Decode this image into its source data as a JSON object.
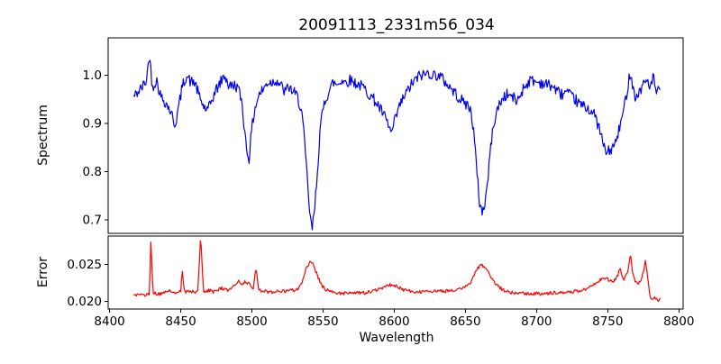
{
  "chart_data": {
    "type": "line",
    "title": "20091113_2331m56_034",
    "x": {
      "label": "Wavelength",
      "xlim": [
        8399,
        8803
      ],
      "ticks": [
        8400,
        8450,
        8500,
        8550,
        8600,
        8650,
        8700,
        8750,
        8800
      ],
      "tick_labels": [
        "8400",
        "8450",
        "8500",
        "8550",
        "8600",
        "8650",
        "8700",
        "8750",
        "8800"
      ],
      "data_range": [
        8417,
        8787
      ],
      "sample_step": 0.6,
      "grid": false
    },
    "panels": [
      {
        "name": "spectrum",
        "ylabel": "Spectrum",
        "color": "#0000ee",
        "ylim": [
          0.672,
          1.077
        ],
        "yticks": [
          0.7,
          0.8,
          0.9,
          1.0
        ],
        "ytick_labels": [
          "0.7",
          "0.8",
          "0.9",
          "1.0"
        ],
        "noise_amplitude": 0.012,
        "features_note": "absorption lines near 8446, 8498, 8542 (deepest ~0.68), 8598, 8662 (~0.715), broad 8750 (~0.84)",
        "anchors": [
          [
            8417,
            0.955
          ],
          [
            8420,
            0.965
          ],
          [
            8423,
            0.975
          ],
          [
            8426,
            0.99
          ],
          [
            8428,
            1.045
          ],
          [
            8430,
            0.975
          ],
          [
            8433,
            0.99
          ],
          [
            8436,
            0.955
          ],
          [
            8439,
            0.945
          ],
          [
            8442,
            0.93
          ],
          [
            8444,
            0.915
          ],
          [
            8446,
            0.895
          ],
          [
            8448,
            0.925
          ],
          [
            8451,
            0.975
          ],
          [
            8454,
            1.0
          ],
          [
            8457,
            0.985
          ],
          [
            8460,
            0.985
          ],
          [
            8463,
            0.955
          ],
          [
            8466,
            0.935
          ],
          [
            8469,
            0.925
          ],
          [
            8472,
            0.95
          ],
          [
            8475,
            0.97
          ],
          [
            8478,
            0.985
          ],
          [
            8481,
            1.0
          ],
          [
            8484,
            0.975
          ],
          [
            8487,
            0.98
          ],
          [
            8490,
            0.975
          ],
          [
            8493,
            0.945
          ],
          [
            8495,
            0.88
          ],
          [
            8497,
            0.835
          ],
          [
            8498,
            0.828
          ],
          [
            8500,
            0.89
          ],
          [
            8502,
            0.93
          ],
          [
            8505,
            0.96
          ],
          [
            8508,
            0.97
          ],
          [
            8511,
            0.985
          ],
          [
            8514,
            0.985
          ],
          [
            8517,
            0.99
          ],
          [
            8520,
            0.98
          ],
          [
            8523,
            0.965
          ],
          [
            8526,
            0.975
          ],
          [
            8529,
            0.965
          ],
          [
            8532,
            0.955
          ],
          [
            8535,
            0.925
          ],
          [
            8537,
            0.86
          ],
          [
            8539,
            0.78
          ],
          [
            8541,
            0.7
          ],
          [
            8542.5,
            0.682
          ],
          [
            8544,
            0.72
          ],
          [
            8546,
            0.8
          ],
          [
            8548,
            0.89
          ],
          [
            8551,
            0.945
          ],
          [
            8554,
            0.965
          ],
          [
            8557,
            0.985
          ],
          [
            8560,
            0.98
          ],
          [
            8563,
            0.99
          ],
          [
            8566,
            0.985
          ],
          [
            8569,
            0.99
          ],
          [
            8572,
            0.985
          ],
          [
            8575,
            0.98
          ],
          [
            8578,
            0.975
          ],
          [
            8581,
            0.965
          ],
          [
            8584,
            0.955
          ],
          [
            8587,
            0.945
          ],
          [
            8590,
            0.93
          ],
          [
            8593,
            0.915
          ],
          [
            8596,
            0.895
          ],
          [
            8598,
            0.878
          ],
          [
            8600,
            0.9
          ],
          [
            8603,
            0.93
          ],
          [
            8606,
            0.95
          ],
          [
            8609,
            0.965
          ],
          [
            8612,
            0.98
          ],
          [
            8615,
            0.99
          ],
          [
            8618,
            1.0
          ],
          [
            8621,
            1.0
          ],
          [
            8624,
            1.005
          ],
          [
            8627,
            1.0
          ],
          [
            8630,
            1.0
          ],
          [
            8633,
            0.995
          ],
          [
            8636,
            0.985
          ],
          [
            8639,
            0.975
          ],
          [
            8642,
            0.965
          ],
          [
            8645,
            0.955
          ],
          [
            8648,
            0.945
          ],
          [
            8651,
            0.94
          ],
          [
            8654,
            0.925
          ],
          [
            8656,
            0.88
          ],
          [
            8658,
            0.8
          ],
          [
            8660,
            0.735
          ],
          [
            8662,
            0.715
          ],
          [
            8664,
            0.74
          ],
          [
            8666,
            0.79
          ],
          [
            8668,
            0.86
          ],
          [
            8671,
            0.915
          ],
          [
            8674,
            0.94
          ],
          [
            8677,
            0.955
          ],
          [
            8680,
            0.96
          ],
          [
            8683,
            0.955
          ],
          [
            8686,
            0.945
          ],
          [
            8688,
            0.955
          ],
          [
            8691,
            0.975
          ],
          [
            8694,
            0.985
          ],
          [
            8697,
            0.99
          ],
          [
            8700,
            0.985
          ],
          [
            8703,
            0.985
          ],
          [
            8706,
            0.98
          ],
          [
            8709,
            0.98
          ],
          [
            8712,
            0.975
          ],
          [
            8715,
            0.965
          ],
          [
            8718,
            0.96
          ],
          [
            8721,
            0.965
          ],
          [
            8724,
            0.955
          ],
          [
            8727,
            0.95
          ],
          [
            8730,
            0.94
          ],
          [
            8733,
            0.935
          ],
          [
            8737,
            0.93
          ],
          [
            8741,
            0.915
          ],
          [
            8744,
            0.89
          ],
          [
            8747,
            0.855
          ],
          [
            8749,
            0.838
          ],
          [
            8752,
            0.845
          ],
          [
            8755,
            0.855
          ],
          [
            8757,
            0.875
          ],
          [
            8760,
            0.91
          ],
          [
            8762,
            0.94
          ],
          [
            8764,
            0.975
          ],
          [
            8766,
            1.01
          ],
          [
            8768,
            0.97
          ],
          [
            8770,
            0.95
          ],
          [
            8772,
            0.965
          ],
          [
            8774,
            0.975
          ],
          [
            8776,
            0.985
          ],
          [
            8778,
            0.99
          ],
          [
            8780,
            0.975
          ],
          [
            8782,
            0.995
          ],
          [
            8784,
            0.965
          ],
          [
            8787,
            0.965
          ]
        ]
      },
      {
        "name": "error",
        "ylabel": "Error",
        "color": "#ff0000",
        "ylim": [
          0.019,
          0.0288
        ],
        "yticks": [
          0.02,
          0.025
        ],
        "ytick_labels": [
          "0.020",
          "0.025"
        ],
        "noise_amplitude": 0.00022,
        "features_note": "baseline ~0.021; narrow spikes at 8429 (~0.028), 8451, 8464 (~0.0287), 8503; broad bumps at 8541 (~0.0255), 8598, 8661 (~0.025), 8750; spikes 8759/8766 (~0.0266)/8776; drops to ~0.020 at end",
        "anchors": [
          [
            8417,
            0.021
          ],
          [
            8421,
            0.0208
          ],
          [
            8425,
            0.0209
          ],
          [
            8428,
            0.0211
          ],
          [
            8429,
            0.028
          ],
          [
            8430.5,
            0.0212
          ],
          [
            8434,
            0.021
          ],
          [
            8438,
            0.0212
          ],
          [
            8441,
            0.0214
          ],
          [
            8444,
            0.0214
          ],
          [
            8447,
            0.0212
          ],
          [
            8450,
            0.0213
          ],
          [
            8451,
            0.0246
          ],
          [
            8452.5,
            0.0212
          ],
          [
            8456,
            0.0214
          ],
          [
            8459,
            0.0213
          ],
          [
            8462,
            0.0214
          ],
          [
            8464,
            0.0287
          ],
          [
            8466,
            0.0214
          ],
          [
            8470,
            0.0215
          ],
          [
            8473,
            0.0213
          ],
          [
            8476,
            0.0216
          ],
          [
            8479,
            0.0218
          ],
          [
            8482,
            0.0215
          ],
          [
            8485,
            0.0217
          ],
          [
            8488,
            0.0222
          ],
          [
            8491,
            0.0228
          ],
          [
            8493,
            0.0224
          ],
          [
            8496,
            0.0227
          ],
          [
            8499,
            0.0222
          ],
          [
            8501,
            0.0218
          ],
          [
            8503,
            0.0246
          ],
          [
            8504.5,
            0.0216
          ],
          [
            8508,
            0.0214
          ],
          [
            8512,
            0.0213
          ],
          [
            8516,
            0.0213
          ],
          [
            8520,
            0.0214
          ],
          [
            8524,
            0.0214
          ],
          [
            8528,
            0.0215
          ],
          [
            8532,
            0.0217
          ],
          [
            8535,
            0.0225
          ],
          [
            8538,
            0.0243
          ],
          [
            8541,
            0.0256
          ],
          [
            8543,
            0.025
          ],
          [
            8546,
            0.0235
          ],
          [
            8549,
            0.0222
          ],
          [
            8552,
            0.0216
          ],
          [
            8556,
            0.0213
          ],
          [
            8560,
            0.0212
          ],
          [
            8564,
            0.0211
          ],
          [
            8568,
            0.0212
          ],
          [
            8572,
            0.0211
          ],
          [
            8576,
            0.0212
          ],
          [
            8580,
            0.0212
          ],
          [
            8584,
            0.0214
          ],
          [
            8588,
            0.0216
          ],
          [
            8592,
            0.0219
          ],
          [
            8596,
            0.0222
          ],
          [
            8599,
            0.0223
          ],
          [
            8602,
            0.022
          ],
          [
            8605,
            0.0217
          ],
          [
            8608,
            0.0215
          ],
          [
            8612,
            0.0214
          ],
          [
            8616,
            0.0213
          ],
          [
            8620,
            0.0213
          ],
          [
            8624,
            0.0214
          ],
          [
            8628,
            0.0214
          ],
          [
            8632,
            0.0215
          ],
          [
            8636,
            0.0214
          ],
          [
            8640,
            0.0215
          ],
          [
            8644,
            0.0216
          ],
          [
            8648,
            0.0218
          ],
          [
            8652,
            0.0222
          ],
          [
            8655,
            0.023
          ],
          [
            8658,
            0.0243
          ],
          [
            8661,
            0.025
          ],
          [
            8664,
            0.0246
          ],
          [
            8667,
            0.0237
          ],
          [
            8670,
            0.0227
          ],
          [
            8673,
            0.022
          ],
          [
            8676,
            0.0216
          ],
          [
            8680,
            0.0213
          ],
          [
            8684,
            0.0212
          ],
          [
            8688,
            0.0211
          ],
          [
            8692,
            0.0211
          ],
          [
            8696,
            0.021
          ],
          [
            8700,
            0.0211
          ],
          [
            8704,
            0.021
          ],
          [
            8708,
            0.0211
          ],
          [
            8712,
            0.0212
          ],
          [
            8716,
            0.0212
          ],
          [
            8720,
            0.0213
          ],
          [
            8724,
            0.0213
          ],
          [
            8728,
            0.0214
          ],
          [
            8732,
            0.0215
          ],
          [
            8736,
            0.0218
          ],
          [
            8740,
            0.0223
          ],
          [
            8744,
            0.0228
          ],
          [
            8748,
            0.0232
          ],
          [
            8751,
            0.0229
          ],
          [
            8754,
            0.0227
          ],
          [
            8757,
            0.0235
          ],
          [
            8759,
            0.0246
          ],
          [
            8760.5,
            0.0228
          ],
          [
            8762,
            0.0232
          ],
          [
            8764,
            0.0238
          ],
          [
            8766,
            0.0266
          ],
          [
            8767.5,
            0.0238
          ],
          [
            8769,
            0.0228
          ],
          [
            8771,
            0.0224
          ],
          [
            8773,
            0.0228
          ],
          [
            8775,
            0.024
          ],
          [
            8776.5,
            0.0257
          ],
          [
            8778,
            0.0235
          ],
          [
            8779.5,
            0.021
          ],
          [
            8781,
            0.0203
          ],
          [
            8783,
            0.0205
          ],
          [
            8785,
            0.0202
          ],
          [
            8787,
            0.0203
          ]
        ]
      }
    ],
    "axis_color": "#000000",
    "background_color": "#ffffff"
  }
}
